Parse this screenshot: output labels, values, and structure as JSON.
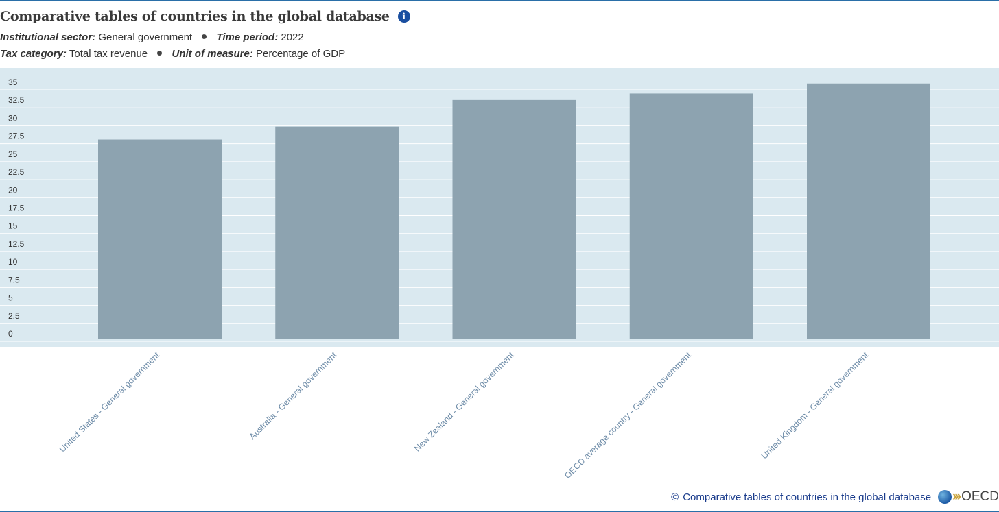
{
  "header": {
    "title": "Comparative tables of countries in the global database",
    "info_icon": "info-icon"
  },
  "meta": {
    "sector_label": "Institutional sector:",
    "sector_value": "General government",
    "period_label": "Time period:",
    "period_value": "2022",
    "category_label": "Tax category:",
    "category_value": "Total tax revenue",
    "unit_label": "Unit of measure:",
    "unit_value": "Percentage of GDP"
  },
  "chart_data": {
    "type": "bar",
    "categories": [
      "United States - General government",
      "Australia - General government",
      "New Zealand - General government",
      "OECD average country - General government",
      "United Kingdom - General government"
    ],
    "values": [
      27.7,
      29.5,
      33.2,
      34.1,
      35.5
    ],
    "yticks": [
      "35",
      "32.5",
      "30",
      "27.5",
      "25",
      "22.5",
      "20",
      "17.5",
      "15",
      "12.5",
      "10",
      "7.5",
      "5",
      "2.5",
      "0"
    ],
    "ylim": [
      0,
      35
    ],
    "grid": true,
    "bar_color": "#8da3b0",
    "background_color": "#dae9f0",
    "tick_color": "#6e8ca8"
  },
  "footer": {
    "copyright": "©",
    "source": "Comparative tables of countries in the global database",
    "logo_text": "OECD"
  }
}
